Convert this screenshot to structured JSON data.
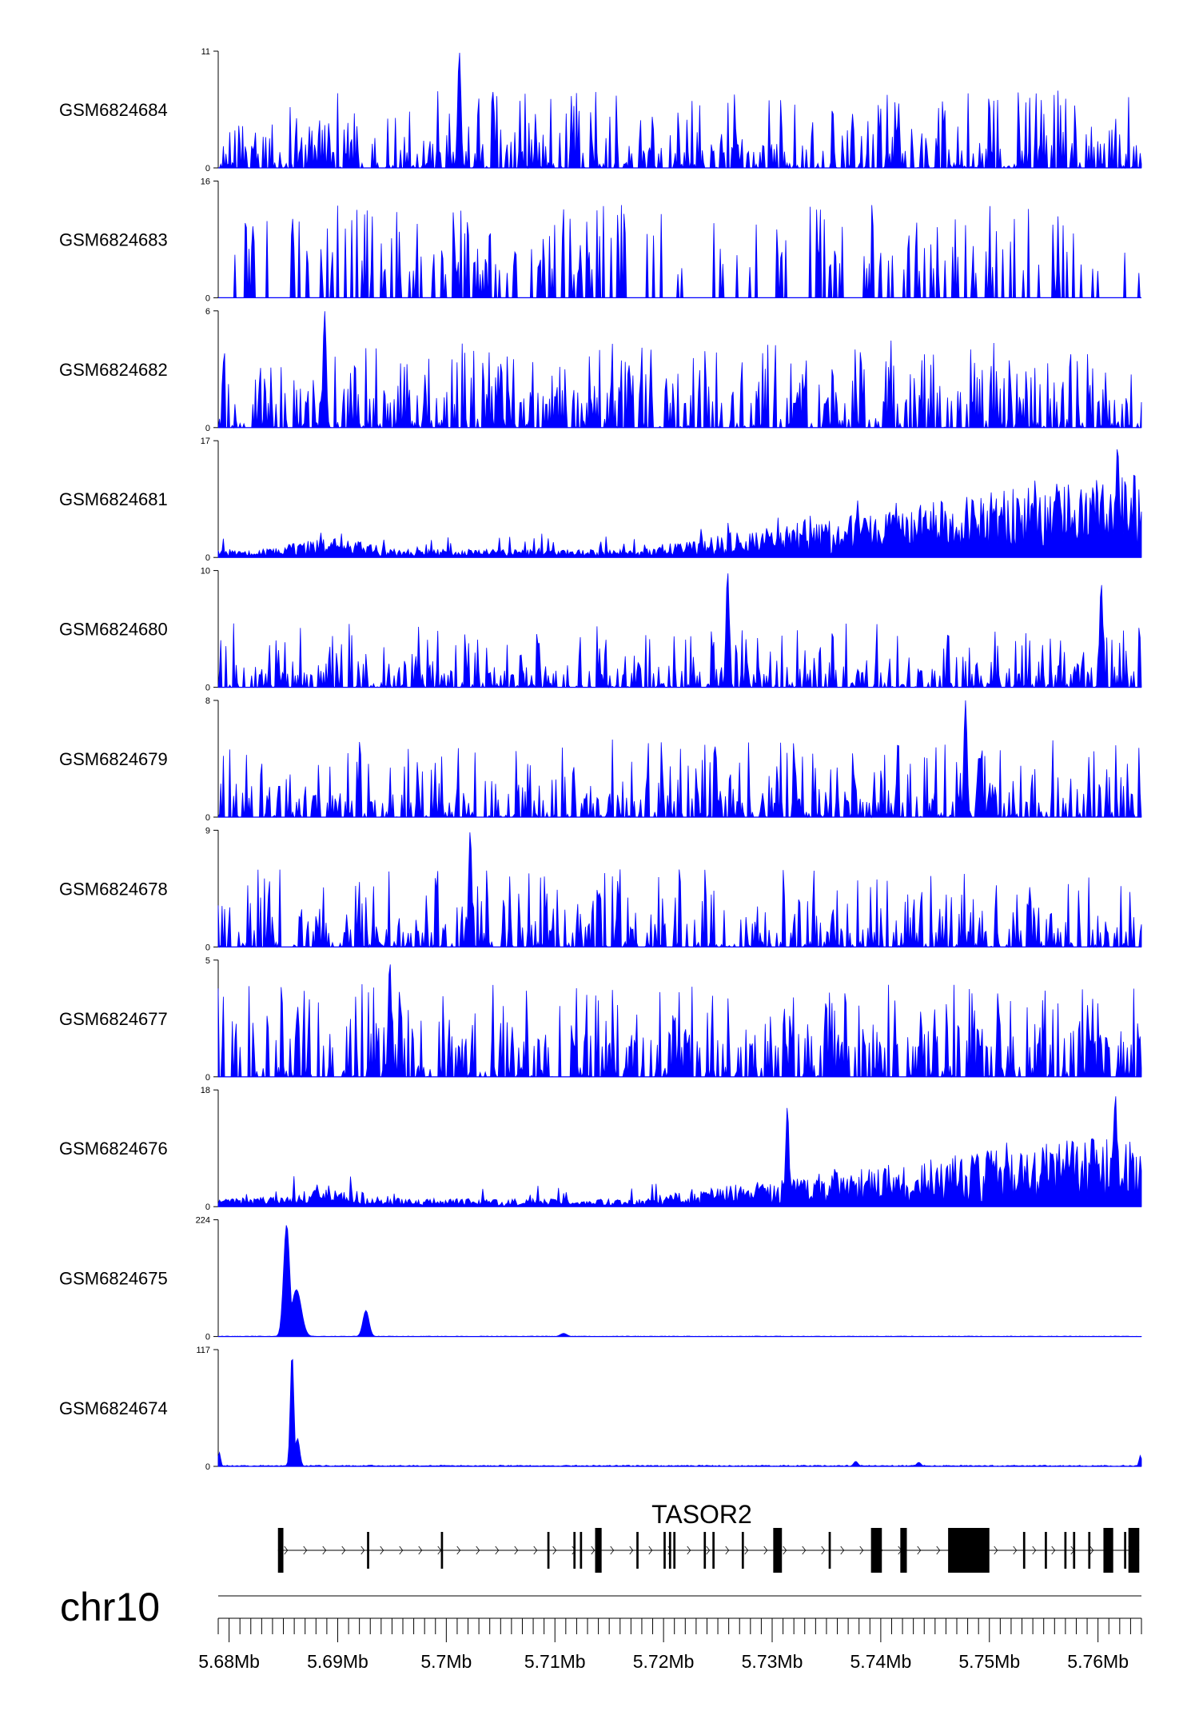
{
  "chart_data": {
    "type": "area",
    "title": "",
    "chromosome": "chr10",
    "x_unit": "Mb",
    "xlim": [
      5.679,
      5.764
    ],
    "x_ticks": [
      5.68,
      5.69,
      5.7,
      5.71,
      5.72,
      5.73,
      5.74,
      5.75,
      5.76
    ],
    "x_tick_labels": [
      "5.68Mb",
      "5.69Mb",
      "5.7Mb",
      "5.71Mb",
      "5.72Mb",
      "5.73Mb",
      "5.74Mb",
      "5.75Mb",
      "5.76Mb"
    ],
    "series_color": "#0000ff",
    "tracks": [
      {
        "name": "GSM6824684",
        "ymin": 0,
        "ymax": 11,
        "profile": "noisy",
        "base": 0.12,
        "spike": 0.55,
        "rise": 0.0,
        "peaks": [
          {
            "x": 5.7012,
            "h": 11,
            "w": 0.00015
          }
        ]
      },
      {
        "name": "GSM6824683",
        "ymin": 0,
        "ymax": 16,
        "profile": "sparse",
        "base": 0.05,
        "spike": 0.6,
        "rise": 0.0,
        "peaks": []
      },
      {
        "name": "GSM6824682",
        "ymin": 0,
        "ymax": 6,
        "profile": "noisy",
        "base": 0.2,
        "spike": 0.55,
        "rise": 0.0,
        "peaks": [
          {
            "x": 5.6888,
            "h": 6,
            "w": 0.00015
          }
        ]
      },
      {
        "name": "GSM6824681",
        "ymin": 0,
        "ymax": 17,
        "profile": "rising",
        "base": 0.05,
        "spike": 0.15,
        "rise": 0.5,
        "peaks": [
          {
            "x": 5.7618,
            "h": 16.5,
            "w": 0.00015
          }
        ]
      },
      {
        "name": "GSM6824680",
        "ymin": 0,
        "ymax": 10,
        "profile": "noisy",
        "base": 0.1,
        "spike": 0.45,
        "rise": 0.0,
        "peaks": [
          {
            "x": 5.7259,
            "h": 10,
            "w": 0.00015
          },
          {
            "x": 5.7603,
            "h": 9,
            "w": 0.00015
          }
        ]
      },
      {
        "name": "GSM6824679",
        "ymin": 0,
        "ymax": 8,
        "profile": "noisy",
        "base": 0.12,
        "spike": 0.55,
        "rise": 0.0,
        "peaks": [
          {
            "x": 5.7478,
            "h": 8,
            "w": 0.00015
          }
        ]
      },
      {
        "name": "GSM6824678",
        "ymin": 0,
        "ymax": 9,
        "profile": "noisy",
        "base": 0.12,
        "spike": 0.55,
        "rise": 0.0,
        "peaks": [
          {
            "x": 5.7022,
            "h": 9,
            "w": 0.00015
          }
        ]
      },
      {
        "name": "GSM6824677",
        "ymin": 0,
        "ymax": 5,
        "profile": "noisy",
        "base": 0.25,
        "spike": 0.55,
        "rise": 0.0,
        "peaks": [
          {
            "x": 5.6948,
            "h": 5,
            "w": 0.00015
          }
        ]
      },
      {
        "name": "GSM6824676",
        "ymin": 0,
        "ymax": 18,
        "profile": "rising",
        "base": 0.05,
        "spike": 0.15,
        "rise": 0.42,
        "peaks": [
          {
            "x": 5.7314,
            "h": 15.5,
            "w": 0.00015
          },
          {
            "x": 5.7616,
            "h": 17.5,
            "w": 0.00015
          }
        ]
      },
      {
        "name": "GSM6824675",
        "ymin": 0,
        "ymax": 224,
        "profile": "flat",
        "base": 0.004,
        "spike": 0.0,
        "rise": 0.0,
        "peaks": [
          {
            "x": 5.6853,
            "h": 215,
            "w": 0.00028
          },
          {
            "x": 5.6862,
            "h": 90,
            "w": 0.00045
          },
          {
            "x": 5.6926,
            "h": 50,
            "w": 0.00028
          },
          {
            "x": 5.7108,
            "h": 6,
            "w": 0.0003
          }
        ]
      },
      {
        "name": "GSM6824674",
        "ymin": 0,
        "ymax": 117,
        "profile": "flat",
        "base": 0.01,
        "spike": 0.0,
        "rise": 0.0,
        "peaks": [
          {
            "x": 5.6858,
            "h": 114,
            "w": 0.00016
          },
          {
            "x": 5.6863,
            "h": 28,
            "w": 0.0002
          },
          {
            "x": 5.6791,
            "h": 14,
            "w": 0.00012
          },
          {
            "x": 5.7639,
            "h": 11,
            "w": 0.00012
          },
          {
            "x": 5.7377,
            "h": 5,
            "w": 0.0002
          },
          {
            "x": 5.7435,
            "h": 4,
            "w": 0.0002
          }
        ]
      }
    ],
    "gene": {
      "name": "TASOR2",
      "strand": "+",
      "start": 5.6845,
      "end": 5.7638,
      "exons": [
        [
          5.6845,
          5.685
        ],
        [
          5.6927,
          5.6929
        ],
        [
          5.6995,
          5.6997
        ],
        [
          5.7093,
          5.7095
        ],
        [
          5.7117,
          5.7119
        ],
        [
          5.7123,
          5.7125
        ],
        [
          5.7137,
          5.7143
        ],
        [
          5.7175,
          5.7177
        ],
        [
          5.72,
          5.7202
        ],
        [
          5.7205,
          5.7207
        ],
        [
          5.7209,
          5.7211
        ],
        [
          5.7237,
          5.7239
        ],
        [
          5.7245,
          5.7247
        ],
        [
          5.7272,
          5.7274
        ],
        [
          5.7301,
          5.7309
        ],
        [
          5.7352,
          5.7354
        ],
        [
          5.7391,
          5.7401
        ],
        [
          5.7418,
          5.7424
        ],
        [
          5.7462,
          5.75
        ],
        [
          5.7531,
          5.7533
        ],
        [
          5.7551,
          5.7553
        ],
        [
          5.7569,
          5.7571
        ],
        [
          5.7577,
          5.7579
        ],
        [
          5.7591,
          5.7593
        ],
        [
          5.7605,
          5.7614
        ],
        [
          5.7624,
          5.7626
        ],
        [
          5.7628,
          5.7638
        ]
      ]
    }
  }
}
